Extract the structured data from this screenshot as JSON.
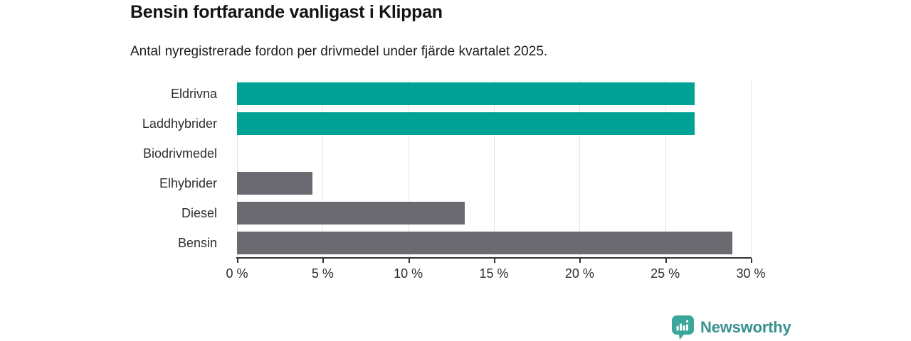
{
  "header": {
    "title": "Bensin fortfarande vanligast i Klippan",
    "subtitle": "Antal nyregistrerade fordon per drivmedel under fjärde kvartalet 2025."
  },
  "chart_data": {
    "type": "bar",
    "orientation": "horizontal",
    "title": "Bensin fortfarande vanligast i Klippan",
    "subtitle": "Antal nyregistrerade fordon per drivmedel under fjärde kvartalet 2025.",
    "categories": [
      "Eldrivna",
      "Laddhybrider",
      "Biodrivmedel",
      "Elhybrider",
      "Diesel",
      "Bensin"
    ],
    "values": [
      26.7,
      26.7,
      0,
      4.4,
      13.3,
      28.9
    ],
    "unit": "%",
    "bar_colors": [
      "#00a296",
      "#00a296",
      "#6a6a70",
      "#6a6a70",
      "#6a6a70",
      "#6a6a70"
    ],
    "highlight_color": "#00a296",
    "base_color": "#6a6a70",
    "xlabel": "",
    "ylabel": "",
    "xlim": [
      0,
      30
    ],
    "x_tick_values": [
      0,
      5,
      10,
      15,
      20,
      25,
      30
    ],
    "x_tick_labels": [
      "0 %",
      "5 %",
      "10 %",
      "15 %",
      "20 %",
      "25 %",
      "30 %"
    ],
    "grid": "vertical",
    "gridline_color": "#e4e4e4",
    "axis_color": "#343434",
    "legend": "none"
  },
  "footer": {
    "brand": "Newsworthy",
    "brand_color": "#37918e",
    "logo_icon": "bar-chart-speech-bubble-icon",
    "logo_color": "#3ba69c"
  }
}
